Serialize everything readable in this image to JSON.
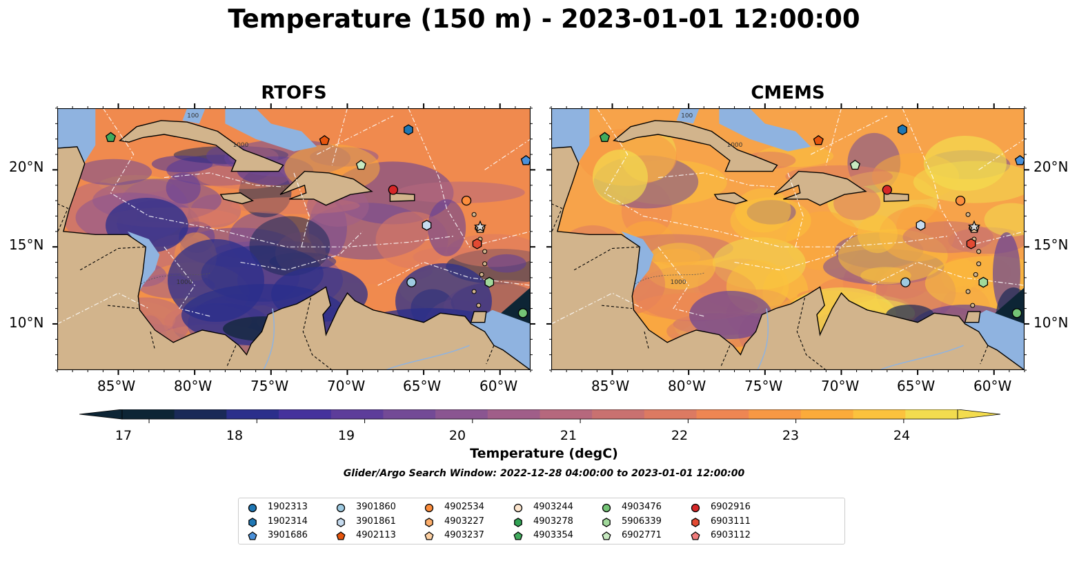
{
  "title": "Temperature (150 m) - 2023-01-01 12:00:00",
  "panels": [
    {
      "title": "RTOFS"
    },
    {
      "title": "CMEMS"
    }
  ],
  "map": {
    "lon_range": [
      -89,
      -58
    ],
    "lat_range": [
      7,
      24
    ],
    "x_ticks": [
      "85°W",
      "80°W",
      "75°W",
      "70°W",
      "65°W",
      "60°W"
    ],
    "y_ticks": [
      "20°N",
      "15°N",
      "10°N"
    ],
    "land_color": "#d2b48c",
    "shelf_color": "#8fb3e0",
    "contour_labels": [
      "1000",
      "1000",
      "100"
    ]
  },
  "colorbar": {
    "label": "Temperature (degC)",
    "ticks": [
      "17",
      "18",
      "19",
      "20",
      "21",
      "22",
      "23",
      "24"
    ],
    "range": [
      16.75,
      24.5
    ],
    "extend": "both",
    "colors": [
      "#0d2535",
      "#1a2a57",
      "#2b2f8b",
      "#45329c",
      "#5d3d9a",
      "#734a96",
      "#8a5591",
      "#a05e89",
      "#b6687d",
      "#c97170",
      "#dc7a62",
      "#ee8653",
      "#f79844",
      "#fbab3a",
      "#fbc23d",
      "#f3dc4e"
    ]
  },
  "search_window": "Glider/Argo Search Window: 2022-12-28 04:00:00 to 2023-01-01 12:00:00",
  "legend": [
    {
      "id": "1902313",
      "marker": "circle",
      "color": "#1f77b4"
    },
    {
      "id": "1902314",
      "marker": "hexagon",
      "color": "#1f77b4"
    },
    {
      "id": "3901686",
      "marker": "pentagon",
      "color": "#4a90d9"
    },
    {
      "id": "3901860",
      "marker": "circle",
      "color": "#9ecae1"
    },
    {
      "id": "3901861",
      "marker": "hexagon",
      "color": "#c6dbef"
    },
    {
      "id": "4902113",
      "marker": "pentagon",
      "color": "#e6550d"
    },
    {
      "id": "4902534",
      "marker": "circle",
      "color": "#fd8d3c"
    },
    {
      "id": "4903227",
      "marker": "hexagon",
      "color": "#fdae6b"
    },
    {
      "id": "4903237",
      "marker": "pentagon",
      "color": "#fdd0a2"
    },
    {
      "id": "4903244",
      "marker": "circle",
      "color": "#fde6ce"
    },
    {
      "id": "4903278",
      "marker": "hexagon",
      "color": "#31a354"
    },
    {
      "id": "4903354",
      "marker": "pentagon",
      "color": "#41ab5d"
    },
    {
      "id": "4903476",
      "marker": "circle",
      "color": "#74c476"
    },
    {
      "id": "5906339",
      "marker": "hexagon",
      "color": "#a1d99b"
    },
    {
      "id": "6902771",
      "marker": "pentagon",
      "color": "#c7e9c0"
    },
    {
      "id": "6902916",
      "marker": "circle",
      "color": "#d62728"
    },
    {
      "id": "6903111",
      "marker": "hexagon",
      "color": "#e34a33"
    },
    {
      "id": "6903112",
      "marker": "pentagon",
      "color": "#f07c7c"
    }
  ],
  "observations": [
    {
      "lon": -85.5,
      "lat": 22.1,
      "marker": "pentagon",
      "color": "#41ab5d"
    },
    {
      "lon": -71.5,
      "lat": 21.9,
      "marker": "pentagon",
      "color": "#e6550d"
    },
    {
      "lon": -66.0,
      "lat": 22.6,
      "marker": "hexagon",
      "color": "#1f77b4"
    },
    {
      "lon": -69.1,
      "lat": 20.3,
      "marker": "pentagon",
      "color": "#c7e9c0"
    },
    {
      "lon": -67.0,
      "lat": 18.7,
      "marker": "circle",
      "color": "#d62728"
    },
    {
      "lon": -62.2,
      "lat": 18.0,
      "marker": "circle",
      "color": "#fd8d3c"
    },
    {
      "lon": -64.8,
      "lat": 16.4,
      "marker": "hexagon",
      "color": "#c6dbef"
    },
    {
      "lon": -61.3,
      "lat": 16.2,
      "marker": "pentagon",
      "color": "#fdd0a2"
    },
    {
      "lon": -61.5,
      "lat": 15.2,
      "marker": "hexagon",
      "color": "#e34a33"
    },
    {
      "lon": -65.8,
      "lat": 12.7,
      "marker": "circle",
      "color": "#9ecae1"
    },
    {
      "lon": -60.7,
      "lat": 12.7,
      "marker": "hexagon",
      "color": "#a1d99b"
    },
    {
      "lon": -58.5,
      "lat": 10.7,
      "marker": "circle",
      "color": "#74c476"
    },
    {
      "lon": -58.3,
      "lat": 20.6,
      "marker": "pentagon",
      "color": "#4a90d9"
    }
  ]
}
